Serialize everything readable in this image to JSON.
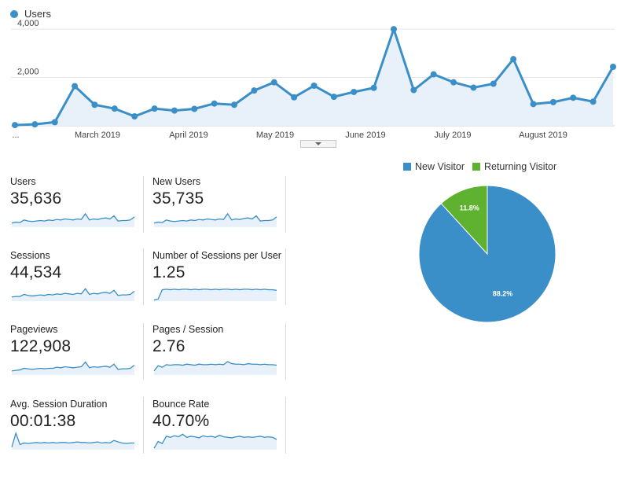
{
  "colors": {
    "primary": "#3a8fc8",
    "area": "#e8f1fa",
    "green": "#5fb130",
    "grid": "#e6e6e6"
  },
  "chart_data": [
    {
      "type": "line",
      "series": [
        {
          "name": "Users",
          "values": [
            30,
            60,
            150,
            1640,
            870,
            710,
            390,
            710,
            630,
            700,
            920,
            870,
            1460,
            1800,
            1180,
            1660,
            1200,
            1400,
            1570,
            4000,
            1480,
            2130,
            1800,
            1580,
            1740,
            2760,
            900,
            980,
            1160,
            1000,
            2440
          ]
        }
      ],
      "x_tick_labels": [
        "...",
        "March 2019",
        "April 2019",
        "May 2019",
        "June 2019",
        "July 2019",
        "August 2019"
      ],
      "y_tick_labels": [
        "2,000",
        "4,000"
      ],
      "ylim": [
        0,
        4100
      ],
      "grid": true,
      "legend": "top-left"
    },
    {
      "type": "pie",
      "labels": [
        "New Visitor",
        "Returning Visitor"
      ],
      "values": [
        88.2,
        11.8
      ],
      "value_labels": [
        "88.2%",
        "11.8%"
      ],
      "colors": [
        "#3a8fc8",
        "#5fb130"
      ],
      "legend": "top"
    }
  ],
  "metrics": [
    {
      "label": "Users",
      "value": "35,636",
      "spark": [
        8,
        10,
        9,
        14,
        12,
        11,
        12,
        13,
        12,
        14,
        13,
        15,
        14,
        16,
        15,
        14,
        16,
        15,
        26,
        14,
        16,
        15,
        17,
        18,
        16,
        22,
        12,
        13,
        13,
        14,
        20
      ]
    },
    {
      "label": "New Users",
      "value": "35,735",
      "spark": [
        8,
        10,
        9,
        14,
        12,
        11,
        12,
        13,
        12,
        14,
        13,
        15,
        14,
        16,
        15,
        14,
        16,
        15,
        26,
        14,
        16,
        15,
        17,
        18,
        16,
        22,
        12,
        13,
        13,
        14,
        20
      ]
    },
    {
      "label": "Sessions",
      "value": "44,534",
      "spark": [
        8,
        9,
        9,
        13,
        11,
        10,
        11,
        12,
        11,
        13,
        12,
        14,
        13,
        15,
        14,
        13,
        15,
        14,
        24,
        13,
        15,
        14,
        16,
        17,
        15,
        21,
        11,
        12,
        12,
        13,
        19
      ]
    },
    {
      "label": "Number of Sessions per User",
      "value": "1.25",
      "spark": [
        2,
        4,
        22,
        23,
        22,
        23,
        22,
        23,
        23,
        22,
        23,
        22,
        23,
        23,
        22,
        23,
        22,
        23,
        23,
        22,
        23,
        22,
        23,
        23,
        22,
        23,
        22,
        23,
        22,
        22,
        21
      ]
    },
    {
      "label": "Pageviews",
      "value": "122,908",
      "spark": [
        8,
        9,
        10,
        13,
        12,
        11,
        12,
        13,
        12,
        13,
        13,
        15,
        14,
        16,
        15,
        14,
        15,
        16,
        25,
        14,
        16,
        15,
        16,
        17,
        15,
        21,
        11,
        12,
        12,
        13,
        19
      ]
    },
    {
      "label": "Pages / Session",
      "value": "2.76",
      "spark": [
        8,
        18,
        15,
        20,
        19,
        20,
        20,
        19,
        21,
        20,
        19,
        21,
        20,
        20,
        21,
        20,
        21,
        20,
        26,
        22,
        21,
        21,
        20,
        22,
        21,
        21,
        20,
        21,
        20,
        20,
        19
      ]
    },
    {
      "label": "Avg. Session Duration",
      "value": "00:01:38",
      "spark": [
        5,
        32,
        10,
        13,
        12,
        13,
        14,
        13,
        14,
        13,
        14,
        13,
        14,
        14,
        13,
        14,
        15,
        14,
        14,
        13,
        14,
        15,
        13,
        14,
        13,
        18,
        15,
        13,
        12,
        13,
        13
      ]
    },
    {
      "label": "Bounce Rate",
      "value": "40.70%",
      "spark": [
        3,
        16,
        12,
        26,
        24,
        27,
        25,
        30,
        24,
        26,
        25,
        23,
        27,
        25,
        26,
        24,
        28,
        25,
        24,
        23,
        25,
        26,
        24,
        25,
        24,
        25,
        26,
        24,
        25,
        24,
        20
      ]
    }
  ]
}
